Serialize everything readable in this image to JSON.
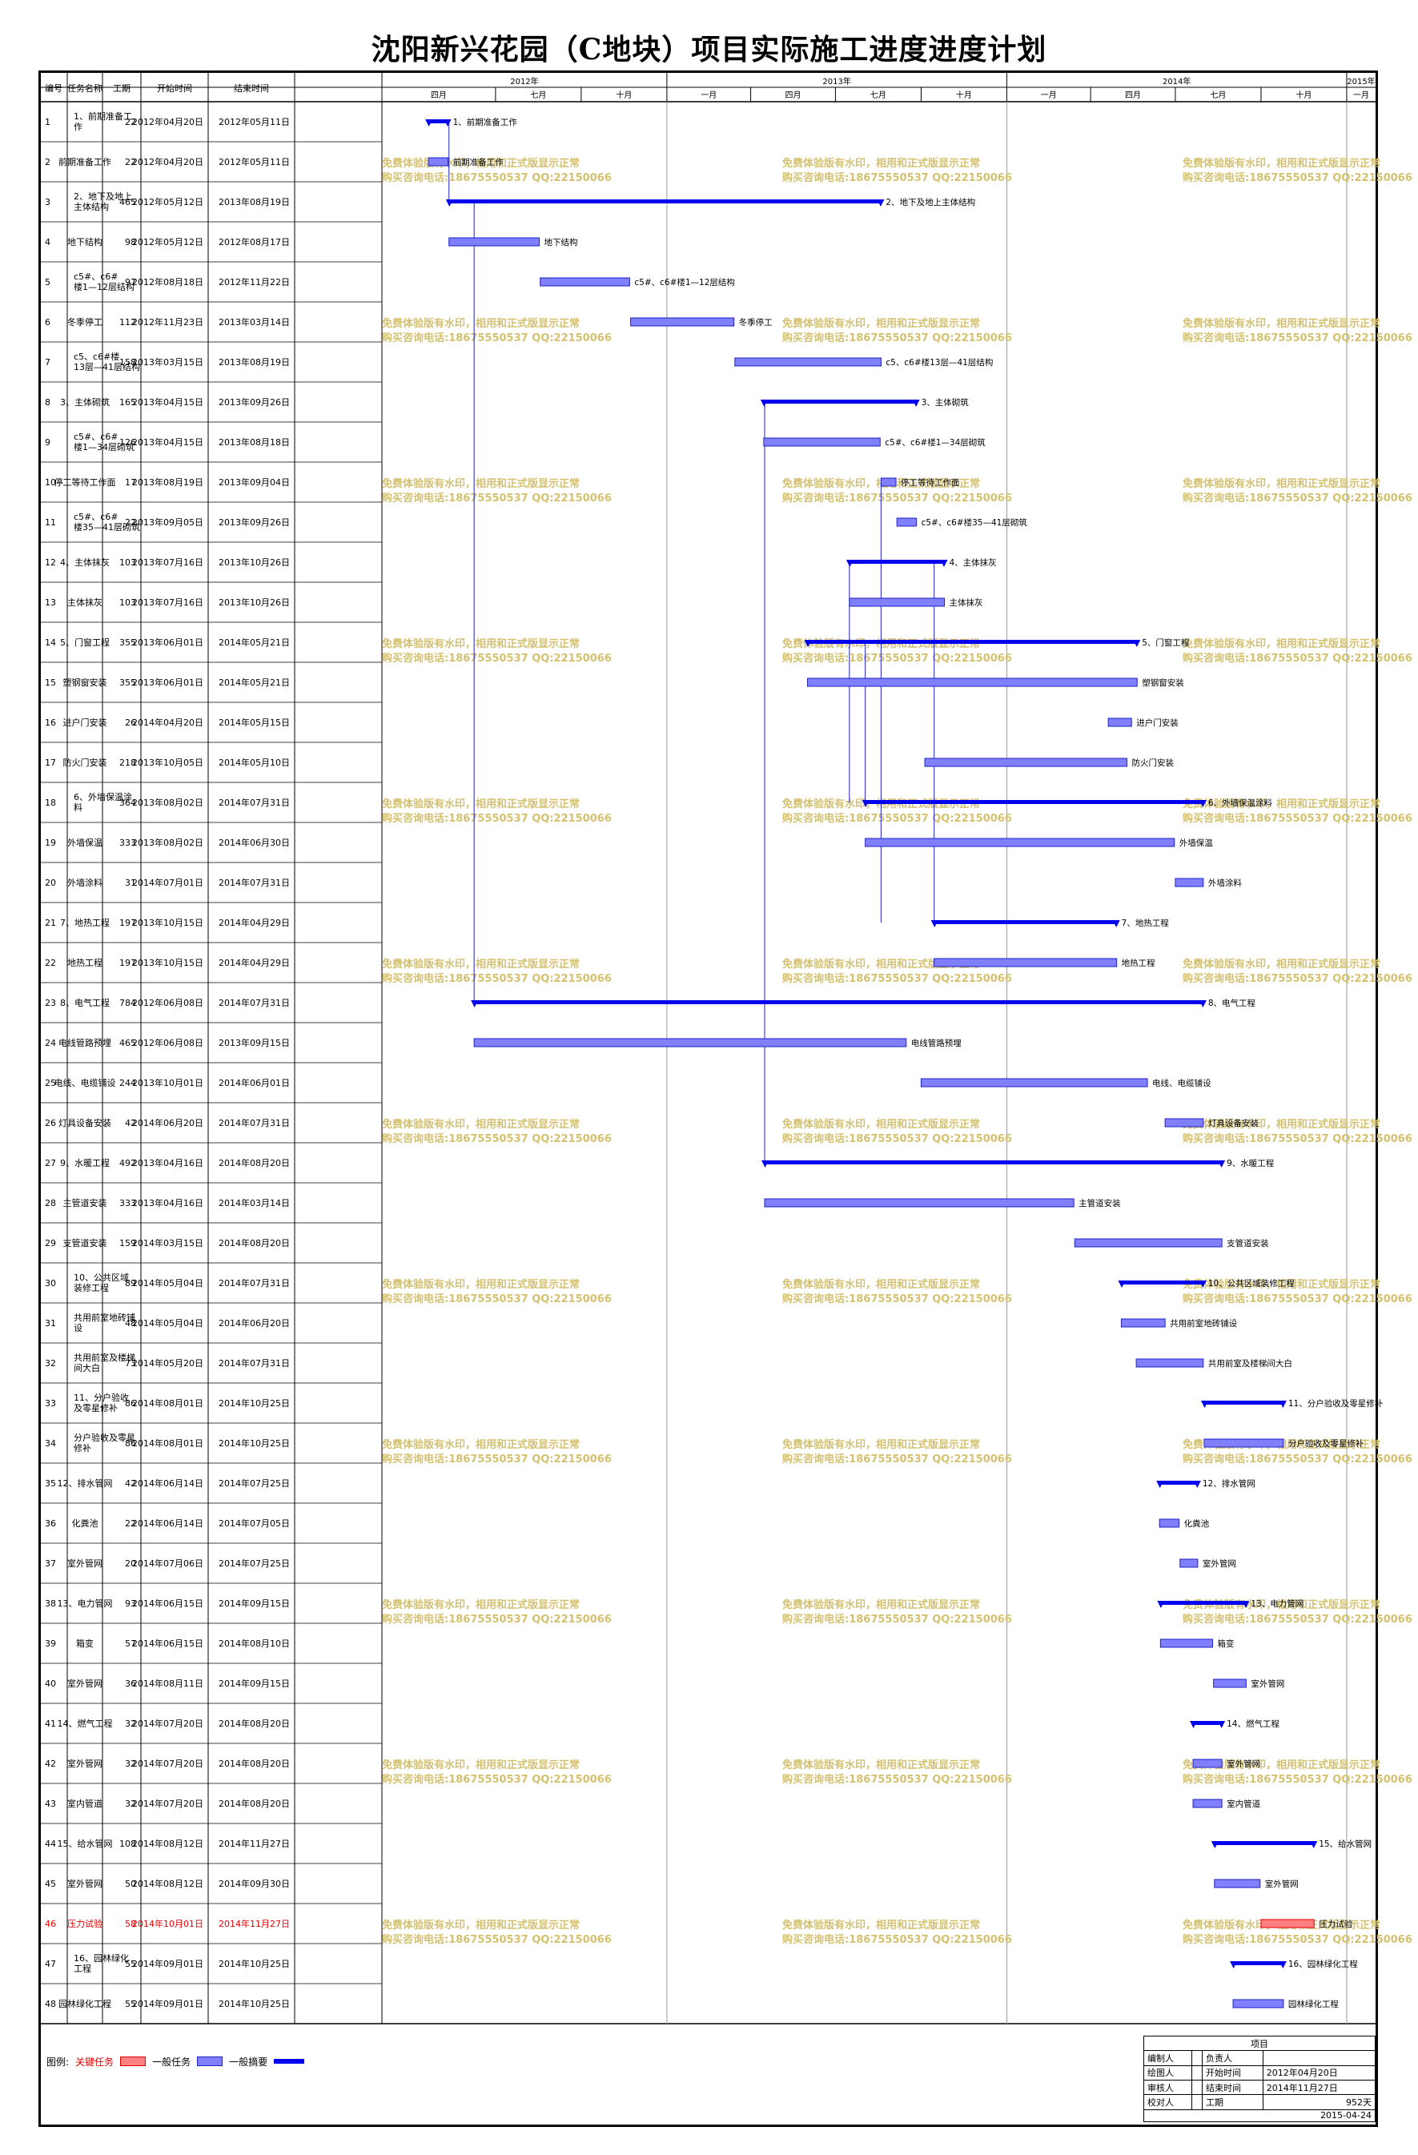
{
  "title": "沈阳新兴花园（C地块）项目实际施工进度进度计划",
  "columns": [
    "编号",
    "任务名称",
    "工期",
    "开始时间",
    "结束时间"
  ],
  "timeline": {
    "years": [
      "2012年",
      "2013年",
      "2014年",
      "2015年"
    ],
    "quarters": [
      "四月",
      "七月",
      "十月",
      "一月",
      "四月",
      "七月",
      "十月",
      "一月",
      "四月",
      "七月",
      "十月",
      "一月"
    ]
  },
  "watermark": {
    "line1": "免费体验版有水印，相用和正式版显示正常",
    "line2": "购买咨询电话:18675550537 QQ:22150066"
  },
  "legend": {
    "label": "图例:",
    "critical": "关键任务",
    "normal": "一般任务",
    "summary": "一般摘要"
  },
  "info_box": {
    "header": "项目",
    "rows": [
      {
        "k1": "编制人",
        "k2": "负责人",
        "v": ""
      },
      {
        "k1": "绘图人",
        "k2": "开始时间",
        "v": "2012年04月20日"
      },
      {
        "k1": "审核人",
        "k2": "结束时间",
        "v": "2014年11月27日"
      },
      {
        "k1": "校对人",
        "k2": "工期",
        "v": "952天"
      }
    ],
    "date": "2015-04-24"
  },
  "colors": {
    "summary": "#0000ee",
    "task_fill": "#8080ff",
    "task_border": "#2020c0",
    "critical_fill": "#ff8080",
    "critical_text": "#e00000",
    "watermark": "#d4c170"
  },
  "chart_data": {
    "type": "gantt",
    "time_range": [
      "2012-03-01",
      "2015-02-01"
    ],
    "tasks": [
      {
        "id": "1",
        "name": "1、前期准备工作",
        "duration": "22",
        "start": "2012年04月20日",
        "end": "2012年05月11日",
        "s": "2012-04-20",
        "e": "2012-05-11",
        "kind": "summary",
        "label": "1、前期准备工作"
      },
      {
        "id": "2",
        "name": "前期准备工作",
        "duration": "22",
        "start": "2012年04月20日",
        "end": "2012年05月11日",
        "s": "2012-04-20",
        "e": "2012-05-11",
        "kind": "task",
        "label": "前期准备工作"
      },
      {
        "id": "3",
        "name": "2、地下及地上主体结构",
        "duration": "465",
        "start": "2012年05月12日",
        "end": "2013年08月19日",
        "s": "2012-05-12",
        "e": "2013-08-19",
        "kind": "summary",
        "label": "2、地下及地上主体结构"
      },
      {
        "id": "4",
        "name": "地下结构",
        "duration": "98",
        "start": "2012年05月12日",
        "end": "2012年08月17日",
        "s": "2012-05-12",
        "e": "2012-08-17",
        "kind": "task",
        "label": "地下结构"
      },
      {
        "id": "5",
        "name": "c5#、c6#楼1—12层结构",
        "duration": "97",
        "start": "2012年08月18日",
        "end": "2012年11月22日",
        "s": "2012-08-18",
        "e": "2012-11-22",
        "kind": "task",
        "label": "c5#、c6#楼1—12层结构"
      },
      {
        "id": "6",
        "name": "冬季停工",
        "duration": "112",
        "start": "2012年11月23日",
        "end": "2013年03月14日",
        "s": "2012-11-23",
        "e": "2013-03-14",
        "kind": "task",
        "label": "冬季停工"
      },
      {
        "id": "7",
        "name": "c5、c6#楼13层—41层结构",
        "duration": "158",
        "start": "2013年03月15日",
        "end": "2013年08月19日",
        "s": "2013-03-15",
        "e": "2013-08-19",
        "kind": "task",
        "label": "c5、c6#楼13层—41层结构"
      },
      {
        "id": "8",
        "name": "3、主体砌筑",
        "duration": "165",
        "start": "2013年04月15日",
        "end": "2013年09月26日",
        "s": "2013-04-15",
        "e": "2013-09-26",
        "kind": "summary",
        "label": "3、主体砌筑"
      },
      {
        "id": "9",
        "name": "c5#、c6#楼1—34层砌筑",
        "duration": "126",
        "start": "2013年04月15日",
        "end": "2013年08月18日",
        "s": "2013-04-15",
        "e": "2013-08-18",
        "kind": "task",
        "label": "c5#、c6#楼1—34层砌筑"
      },
      {
        "id": "10",
        "name": "停工等待工作面",
        "duration": "17",
        "start": "2013年08月19日",
        "end": "2013年09月04日",
        "s": "2013-08-19",
        "e": "2013-09-04",
        "kind": "task",
        "label": "停工等待工作面"
      },
      {
        "id": "11",
        "name": "c5#、c6#楼35—41层砌筑",
        "duration": "22",
        "start": "2013年09月05日",
        "end": "2013年09月26日",
        "s": "2013-09-05",
        "e": "2013-09-26",
        "kind": "task",
        "label": "c5#、c6#楼35—41层砌筑"
      },
      {
        "id": "12",
        "name": "4、主体抹灰",
        "duration": "103",
        "start": "2013年07月16日",
        "end": "2013年10月26日",
        "s": "2013-07-16",
        "e": "2013-10-26",
        "kind": "summary",
        "label": "4、主体抹灰"
      },
      {
        "id": "13",
        "name": "主体抹灰",
        "duration": "103",
        "start": "2013年07月16日",
        "end": "2013年10月26日",
        "s": "2013-07-16",
        "e": "2013-10-26",
        "kind": "task",
        "label": "主体抹灰"
      },
      {
        "id": "14",
        "name": "5、门窗工程",
        "duration": "355",
        "start": "2013年06月01日",
        "end": "2014年05月21日",
        "s": "2013-06-01",
        "e": "2014-05-21",
        "kind": "summary",
        "label": "5、门窗工程"
      },
      {
        "id": "15",
        "name": "塑钢窗安装",
        "duration": "355",
        "start": "2013年06月01日",
        "end": "2014年05月21日",
        "s": "2013-06-01",
        "e": "2014-05-21",
        "kind": "task",
        "label": "塑钢窗安装"
      },
      {
        "id": "16",
        "name": "进户门安装",
        "duration": "26",
        "start": "2014年04月20日",
        "end": "2014年05月15日",
        "s": "2014-04-20",
        "e": "2014-05-15",
        "kind": "task",
        "label": "进户门安装"
      },
      {
        "id": "17",
        "name": "防火门安装",
        "duration": "218",
        "start": "2013年10月05日",
        "end": "2014年05月10日",
        "s": "2013-10-05",
        "e": "2014-05-10",
        "kind": "task",
        "label": "防火门安装"
      },
      {
        "id": "18",
        "name": "6、外墙保温涂料",
        "duration": "364",
        "start": "2013年08月02日",
        "end": "2014年07月31日",
        "s": "2013-08-02",
        "e": "2014-07-31",
        "kind": "summary",
        "label": "6、外墙保温涂料"
      },
      {
        "id": "19",
        "name": "外墙保温",
        "duration": "333",
        "start": "2013年08月02日",
        "end": "2014年06月30日",
        "s": "2013-08-02",
        "e": "2014-06-30",
        "kind": "task",
        "label": "外墙保温"
      },
      {
        "id": "20",
        "name": "外墙涂料",
        "duration": "31",
        "start": "2014年07月01日",
        "end": "2014年07月31日",
        "s": "2014-07-01",
        "e": "2014-07-31",
        "kind": "task",
        "label": "外墙涂料"
      },
      {
        "id": "21",
        "name": "7、地热工程",
        "duration": "197",
        "start": "2013年10月15日",
        "end": "2014年04月29日",
        "s": "2013-10-15",
        "e": "2014-04-29",
        "kind": "summary",
        "label": "7、地热工程"
      },
      {
        "id": "22",
        "name": "地热工程",
        "duration": "197",
        "start": "2013年10月15日",
        "end": "2014年04月29日",
        "s": "2013-10-15",
        "e": "2014-04-29",
        "kind": "task",
        "label": "地热工程"
      },
      {
        "id": "23",
        "name": "8、电气工程",
        "duration": "784",
        "start": "2012年06月08日",
        "end": "2014年07月31日",
        "s": "2012-06-08",
        "e": "2014-07-31",
        "kind": "summary",
        "label": "8、电气工程"
      },
      {
        "id": "24",
        "name": "电线管路预埋",
        "duration": "465",
        "start": "2012年06月08日",
        "end": "2013年09月15日",
        "s": "2012-06-08",
        "e": "2013-09-15",
        "kind": "task",
        "label": "电线管路预埋"
      },
      {
        "id": "25",
        "name": "电线、电缆铺设",
        "duration": "244",
        "start": "2013年10月01日",
        "end": "2014年06月01日",
        "s": "2013-10-01",
        "e": "2014-06-01",
        "kind": "task",
        "label": "电线、电缆铺设"
      },
      {
        "id": "26",
        "name": "灯具设备安装",
        "duration": "42",
        "start": "2014年06月20日",
        "end": "2014年07月31日",
        "s": "2014-06-20",
        "e": "2014-07-31",
        "kind": "task",
        "label": "灯具设备安装"
      },
      {
        "id": "27",
        "name": "9、水暖工程",
        "duration": "492",
        "start": "2013年04月16日",
        "end": "2014年08月20日",
        "s": "2013-04-16",
        "e": "2014-08-20",
        "kind": "summary",
        "label": "9、水暖工程"
      },
      {
        "id": "28",
        "name": "主管道安装",
        "duration": "333",
        "start": "2013年04月16日",
        "end": "2014年03月14日",
        "s": "2013-04-16",
        "e": "2014-03-14",
        "kind": "task",
        "label": "主管道安装"
      },
      {
        "id": "29",
        "name": "支管道安装",
        "duration": "159",
        "start": "2014年03月15日",
        "end": "2014年08月20日",
        "s": "2014-03-15",
        "e": "2014-08-20",
        "kind": "task",
        "label": "支管道安装"
      },
      {
        "id": "30",
        "name": "10、公共区域装修工程",
        "duration": "89",
        "start": "2014年05月04日",
        "end": "2014年07月31日",
        "s": "2014-05-04",
        "e": "2014-07-31",
        "kind": "summary",
        "label": "10、公共区域装修工程"
      },
      {
        "id": "31",
        "name": "共用前室地砖铺设",
        "duration": "48",
        "start": "2014年05月04日",
        "end": "2014年06月20日",
        "s": "2014-05-04",
        "e": "2014-06-20",
        "kind": "task",
        "label": "共用前室地砖铺设"
      },
      {
        "id": "32",
        "name": "共用前室及楼梯间大白",
        "duration": "73",
        "start": "2014年05月20日",
        "end": "2014年07月31日",
        "s": "2014-05-20",
        "e": "2014-07-31",
        "kind": "task",
        "label": "共用前室及楼梯间大白"
      },
      {
        "id": "33",
        "name": "11、分户验收及零星修补",
        "duration": "86",
        "start": "2014年08月01日",
        "end": "2014年10月25日",
        "s": "2014-08-01",
        "e": "2014-10-25",
        "kind": "summary",
        "label": "11、分户验收及零星修补"
      },
      {
        "id": "34",
        "name": "分户验收及零星修补",
        "duration": "86",
        "start": "2014年08月01日",
        "end": "2014年10月25日",
        "s": "2014-08-01",
        "e": "2014-10-25",
        "kind": "task",
        "label": "分户验收及零星修补"
      },
      {
        "id": "35",
        "name": "12、排水管网",
        "duration": "42",
        "start": "2014年06月14日",
        "end": "2014年07月25日",
        "s": "2014-06-14",
        "e": "2014-07-25",
        "kind": "summary",
        "label": "12、排水管网"
      },
      {
        "id": "36",
        "name": "化粪池",
        "duration": "22",
        "start": "2014年06月14日",
        "end": "2014年07月05日",
        "s": "2014-06-14",
        "e": "2014-07-05",
        "kind": "task",
        "label": "化粪池"
      },
      {
        "id": "37",
        "name": "室外管网",
        "duration": "20",
        "start": "2014年07月06日",
        "end": "2014年07月25日",
        "s": "2014-07-06",
        "e": "2014-07-25",
        "kind": "task",
        "label": "室外管网"
      },
      {
        "id": "38",
        "name": "13、电力管网",
        "duration": "93",
        "start": "2014年06月15日",
        "end": "2014年09月15日",
        "s": "2014-06-15",
        "e": "2014-09-15",
        "kind": "summary",
        "label": "13、电力管网"
      },
      {
        "id": "39",
        "name": "箱变",
        "duration": "57",
        "start": "2014年06月15日",
        "end": "2014年08月10日",
        "s": "2014-06-15",
        "e": "2014-08-10",
        "kind": "task",
        "label": "箱变"
      },
      {
        "id": "40",
        "name": "室外管网",
        "duration": "36",
        "start": "2014年08月11日",
        "end": "2014年09月15日",
        "s": "2014-08-11",
        "e": "2014-09-15",
        "kind": "task",
        "label": "室外管网"
      },
      {
        "id": "41",
        "name": "14、燃气工程",
        "duration": "32",
        "start": "2014年07月20日",
        "end": "2014年08月20日",
        "s": "2014-07-20",
        "e": "2014-08-20",
        "kind": "summary",
        "label": "14、燃气工程"
      },
      {
        "id": "42",
        "name": "室外管网",
        "duration": "32",
        "start": "2014年07月20日",
        "end": "2014年08月20日",
        "s": "2014-07-20",
        "e": "2014-08-20",
        "kind": "task",
        "label": "室外管网"
      },
      {
        "id": "43",
        "name": "室内管道",
        "duration": "32",
        "start": "2014年07月20日",
        "end": "2014年08月20日",
        "s": "2014-07-20",
        "e": "2014-08-20",
        "kind": "task",
        "label": "室内管道"
      },
      {
        "id": "44",
        "name": "15、给水管网",
        "duration": "108",
        "start": "2014年08月12日",
        "end": "2014年11月27日",
        "s": "2014-08-12",
        "e": "2014-11-27",
        "kind": "summary",
        "label": "15、给水管网"
      },
      {
        "id": "45",
        "name": "室外管网",
        "duration": "50",
        "start": "2014年08月12日",
        "end": "2014年09月30日",
        "s": "2014-08-12",
        "e": "2014-09-30",
        "kind": "task",
        "label": "室外管网"
      },
      {
        "id": "46",
        "name": "压力试验",
        "duration": "58",
        "start": "2014年10月01日",
        "end": "2014年11月27日",
        "s": "2014-10-01",
        "e": "2014-11-27",
        "kind": "critical",
        "label": "压力试验"
      },
      {
        "id": "47",
        "name": "16、园林绿化工程",
        "duration": "55",
        "start": "2014年09月01日",
        "end": "2014年10月25日",
        "s": "2014-09-01",
        "e": "2014-10-25",
        "kind": "summary",
        "label": "16、园林绿化工程"
      },
      {
        "id": "48",
        "name": "园林绿化工程",
        "duration": "55",
        "start": "2014年09月01日",
        "end": "2014年10月25日",
        "s": "2014-09-01",
        "e": "2014-10-25",
        "kind": "task",
        "label": "园林绿化工程"
      }
    ]
  }
}
